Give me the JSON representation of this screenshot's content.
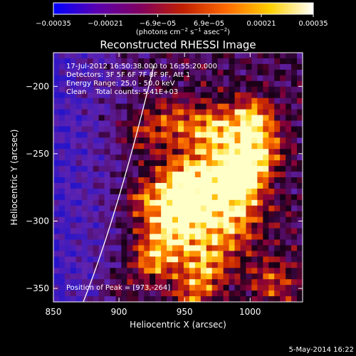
{
  "chart_data": {
    "type": "heatmap",
    "title": "Reconstructed RHESSI Image",
    "xlabel": "Heliocentric X (arcsec)",
    "ylabel": "Heliocentric Y (arcsec)",
    "xlim": [
      850,
      1040
    ],
    "ylim": [
      -360,
      -175
    ],
    "x_ticks": [
      850,
      900,
      950,
      1000
    ],
    "y_ticks": [
      -350,
      -300,
      -250,
      -200
    ],
    "x_tick_labels": [
      "850",
      "900",
      "950",
      "1000"
    ],
    "y_tick_labels": [
      "−350",
      "−300",
      "−250",
      "−200"
    ],
    "colorbar": {
      "range": [
        -0.00035,
        0.00035
      ],
      "ticks": [
        -0.00035,
        -0.00021,
        -6.9e-05,
        6.9e-05,
        0.00021,
        0.00035
      ],
      "tick_labels": [
        "−0.00035",
        "−0.00021",
        "−6.9e−05",
        "6.9e−05",
        "0.00021",
        "0.00035"
      ],
      "units_prefix": "(photons cm",
      "units_exp1": "−2",
      "units_mid": " s",
      "units_exp2": "−1",
      "units_mid2": " asec",
      "units_exp3": "−2",
      "units_suffix": ")",
      "colors": [
        "#0000ff",
        "#5a00b0",
        "#800060",
        "#c02000",
        "#ff6a00",
        "#ffd000",
        "#ffffff"
      ]
    },
    "annotations": {
      "time_range": "17-Jul-2012 16:50:38.000 to 16:55:20.000",
      "detectors": "Detectors: 3F 5F 6F 7F 8F 9F, Att 1",
      "energy": "Energy Range: 25.0 - 50.0 keV",
      "clean": "Clean    Total counts: 5.41E+03",
      "peak": "Position of Peak = [973,-264]"
    },
    "peak_position": [
      973,
      -264
    ],
    "grid": false
  },
  "footer": {
    "date": "5-May-2014 16:22"
  }
}
